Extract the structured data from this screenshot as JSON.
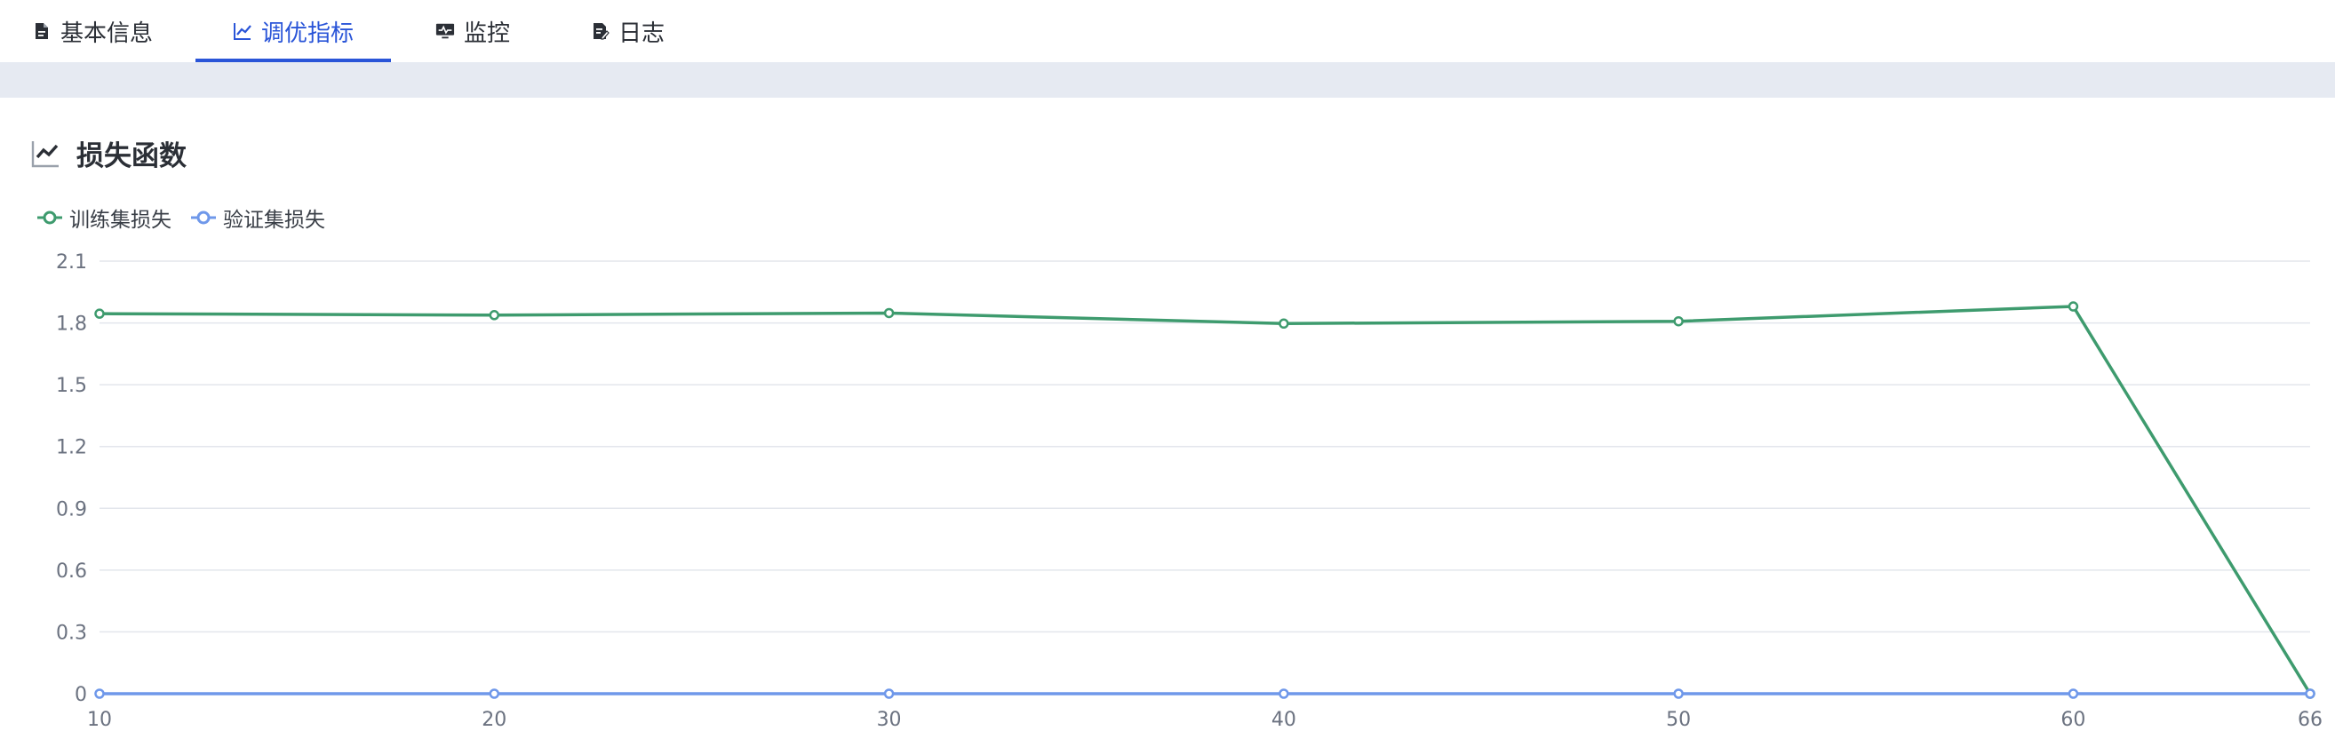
{
  "tabs": [
    {
      "label": "基本信息",
      "icon": "file-text-icon",
      "active": false
    },
    {
      "label": "调优指标",
      "icon": "line-chart-icon",
      "active": true
    },
    {
      "label": "监控",
      "icon": "monitor-icon",
      "active": false
    },
    {
      "label": "日志",
      "icon": "edit-file-icon",
      "active": false
    }
  ],
  "section": {
    "title": "损失函数",
    "icon": "line-chart-icon"
  },
  "colors": {
    "active": "#2a55d8",
    "train": "#3e9b6e",
    "val": "#6f98ea",
    "grid": "#e3e6ec",
    "band": "#e6eaf2"
  },
  "chart_data": {
    "type": "line",
    "x": [
      10,
      20,
      30,
      40,
      50,
      60,
      66
    ],
    "xticks": [
      "10",
      "20",
      "30",
      "40",
      "50",
      "60",
      "66"
    ],
    "yticks": [
      "0",
      "0.3",
      "0.6",
      "0.9",
      "1.2",
      "1.5",
      "1.8",
      "2.1"
    ],
    "ylim": [
      0,
      2.1
    ],
    "xlim": [
      10,
      66
    ],
    "grid": true,
    "legend": "top-left",
    "series": [
      {
        "name": "训练集损失",
        "values": [
          1.845,
          1.838,
          1.848,
          1.797,
          1.808,
          1.88,
          0
        ],
        "color": "#3e9b6e"
      },
      {
        "name": "验证集损失",
        "values": [
          0,
          0,
          0,
          0,
          0,
          0,
          0
        ],
        "color": "#6f98ea"
      }
    ]
  }
}
